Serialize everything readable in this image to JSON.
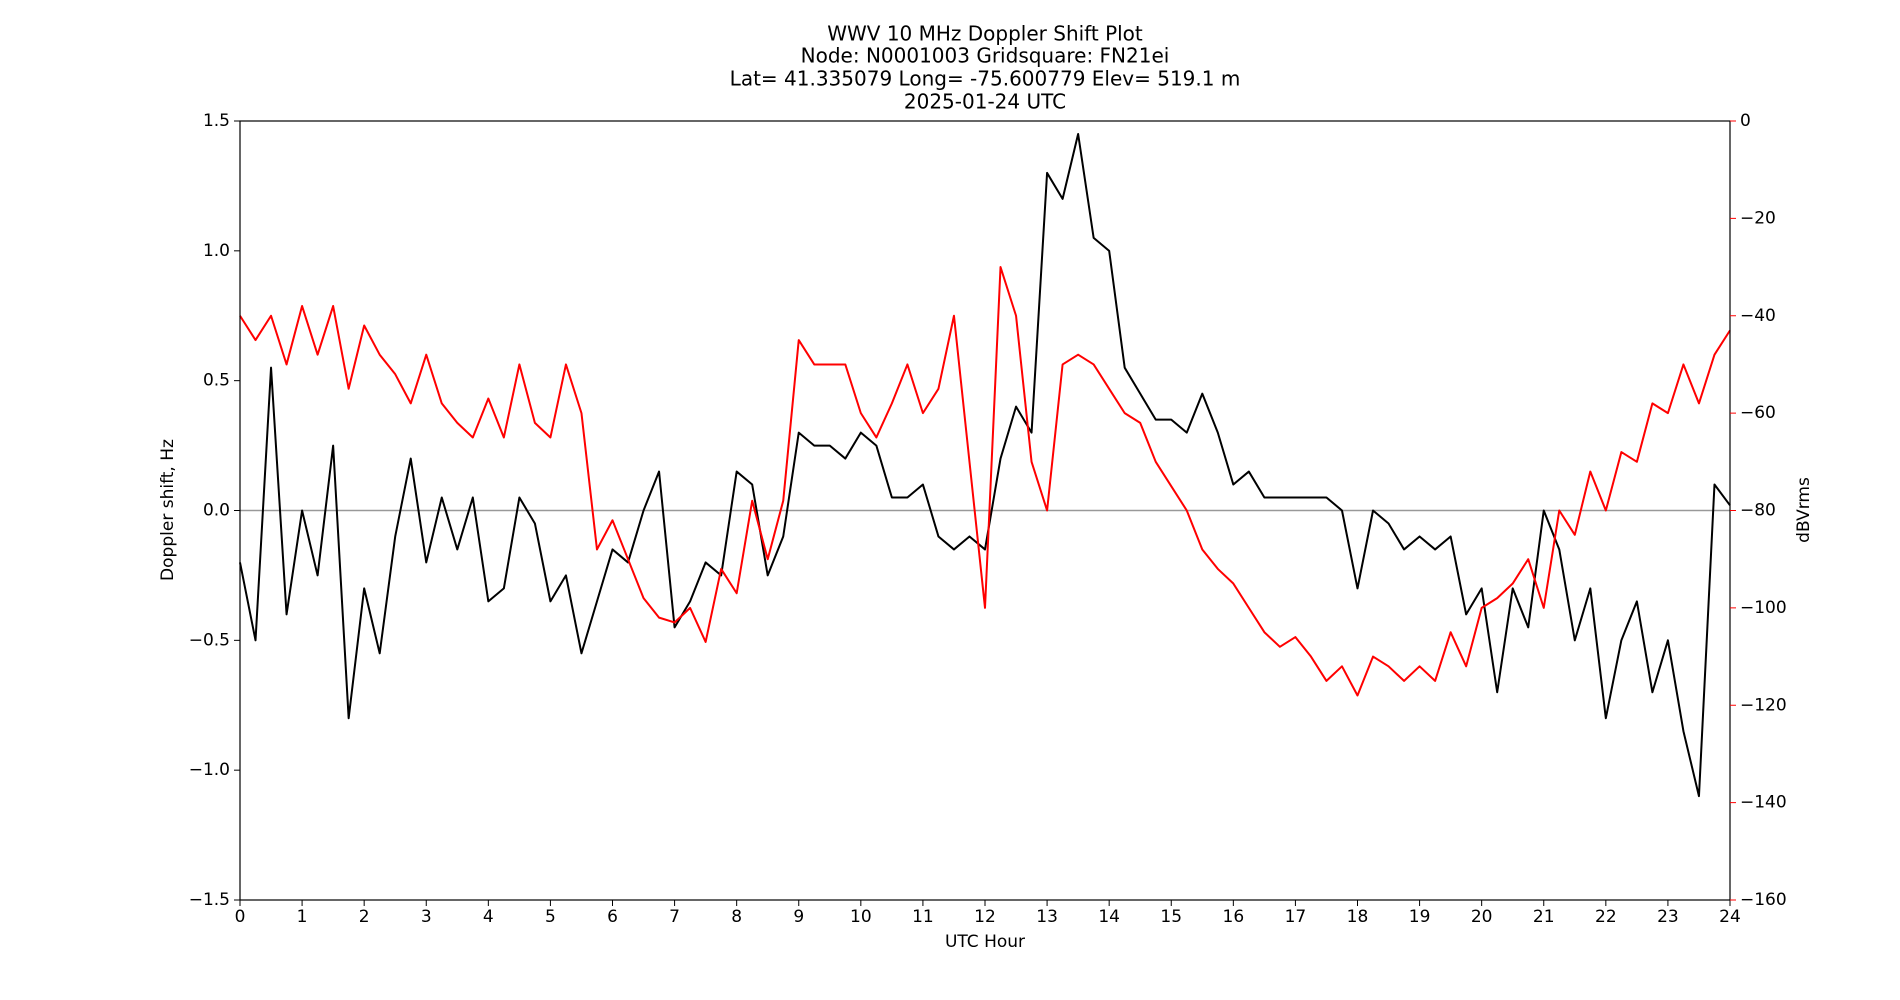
{
  "chart_data": {
    "type": "line",
    "title": [
      "WWV 10 MHz Doppler Shift Plot",
      "Node:  N0001003     Gridsquare:  FN21ei",
      "Lat= 41.335079    Long= -75.600779    Elev= 519.1 m",
      "2025-01-24  UTC"
    ],
    "xlabel": "UTC Hour",
    "ylabel": "Doppler shift, Hz",
    "y2label": "dBVrms",
    "xlim": [
      0,
      24
    ],
    "xticks": [
      0,
      1,
      2,
      3,
      4,
      5,
      6,
      7,
      8,
      9,
      10,
      11,
      12,
      13,
      14,
      15,
      16,
      17,
      18,
      19,
      20,
      21,
      22,
      23,
      24
    ],
    "ylim": [
      -1.5,
      1.5
    ],
    "yticks": [
      {
        "value": -1.5,
        "label": "−1.5"
      },
      {
        "value": -1.0,
        "label": "−1.0"
      },
      {
        "value": -0.5,
        "label": "−0.5"
      },
      {
        "value": 0,
        "label": "0.0"
      },
      0.5,
      {
        "value": 1.0,
        "label": "1.0"
      },
      1.5
    ],
    "y2lim": [
      -160,
      0
    ],
    "y2ticks": [
      {
        "value": -160,
        "label": "−160"
      },
      {
        "value": -140,
        "label": "−140"
      },
      {
        "value": -120,
        "label": "−120"
      },
      {
        "value": -100,
        "label": "−100"
      },
      {
        "value": -80,
        "label": "−80"
      },
      {
        "value": -60,
        "label": "−60"
      },
      {
        "value": -40,
        "label": "−40"
      },
      {
        "value": -20,
        "label": "−20"
      },
      0
    ],
    "y2color": "#ff0000",
    "hlines": [
      0
    ],
    "hline_color": "#999999",
    "x": [
      0,
      0.25,
      0.5,
      0.75,
      1,
      1.25,
      1.5,
      1.75,
      2,
      2.25,
      2.5,
      2.75,
      3,
      3.25,
      3.5,
      3.75,
      4,
      4.25,
      4.5,
      4.75,
      5,
      5.25,
      5.5,
      5.75,
      6,
      6.25,
      6.5,
      6.75,
      7,
      7.25,
      7.5,
      7.75,
      8,
      8.25,
      8.5,
      8.75,
      9,
      9.25,
      9.5,
      9.75,
      10,
      10.25,
      10.5,
      10.75,
      11,
      11.25,
      11.5,
      11.75,
      12,
      12.25,
      12.5,
      12.75,
      13,
      13.25,
      13.5,
      13.75,
      14,
      14.25,
      14.5,
      14.75,
      15,
      15.25,
      15.5,
      15.75,
      16,
      16.25,
      16.5,
      16.75,
      17,
      17.25,
      17.5,
      17.75,
      18,
      18.25,
      18.5,
      18.75,
      19,
      19.25,
      19.5,
      19.75,
      20,
      20.25,
      20.5,
      20.75,
      21,
      21.25,
      21.5,
      21.75,
      22,
      22.25,
      22.5,
      22.75,
      23,
      23.25,
      23.5,
      23.75,
      24
    ],
    "series": [
      {
        "color": "#000000",
        "values": [
          -0.2,
          -0.5,
          0.55,
          -0.4,
          0.0,
          -0.25,
          0.25,
          -0.8,
          -0.3,
          -0.55,
          -0.1,
          0.2,
          -0.2,
          0.05,
          -0.15,
          0.05,
          -0.35,
          -0.3,
          0.05,
          -0.05,
          -0.35,
          -0.25,
          -0.55,
          -0.35,
          -0.15,
          -0.2,
          0.0,
          0.15,
          -0.45,
          -0.35,
          -0.2,
          -0.25,
          0.15,
          0.1,
          -0.25,
          -0.1,
          0.3,
          0.25,
          0.25,
          0.2,
          0.3,
          0.25,
          0.05,
          0.05,
          0.1,
          -0.1,
          -0.15,
          -0.1,
          -0.15,
          0.2,
          0.4,
          0.3,
          1.3,
          1.2,
          1.45,
          1.05,
          1.0,
          0.55,
          0.45,
          0.35,
          0.35,
          0.3,
          0.45,
          0.3,
          0.1,
          0.15,
          0.05,
          0.05,
          0.05,
          0.05,
          0.05,
          0.0,
          -0.3,
          0.0,
          -0.05,
          -0.15,
          -0.1,
          -0.15,
          -0.1,
          -0.4,
          -0.3,
          -0.7,
          -0.3,
          -0.45,
          0.0,
          -0.15,
          -0.5,
          -0.3,
          -0.8,
          -0.5,
          -0.35,
          -0.7,
          -0.5,
          -0.85,
          -1.1,
          0.1,
          0.02
        ]
      },
      {
        "color": "#ff0000",
        "axis": "y2",
        "values": [
          -40,
          -45,
          -40,
          -50,
          -38,
          -48,
          -38,
          -55,
          -42,
          -48,
          -52,
          -58,
          -48,
          -58,
          -62,
          -65,
          -57,
          -65,
          -50,
          -62,
          -65,
          -50,
          -60,
          -88,
          -82,
          -90,
          -98,
          -102,
          -103,
          -100,
          -107,
          -92,
          -97,
          -78,
          -90,
          -78,
          -45,
          -50,
          -50,
          -50,
          -60,
          -65,
          -58,
          -50,
          -60,
          -55,
          -40,
          -70,
          -100,
          -30,
          -40,
          -70,
          -80,
          -50,
          -48,
          -50,
          -55,
          -60,
          -62,
          -70,
          -75,
          -80,
          -88,
          -92,
          -95,
          -100,
          -105,
          -108,
          -106,
          -110,
          -115,
          -112,
          -118,
          -110,
          -112,
          -115,
          -112,
          -115,
          -105,
          -112,
          -100,
          -98,
          -95,
          -90,
          -100,
          -80,
          -85,
          -72,
          -80,
          -68,
          -70,
          -58,
          -60,
          -50,
          -58,
          -48,
          -43
        ]
      }
    ]
  }
}
